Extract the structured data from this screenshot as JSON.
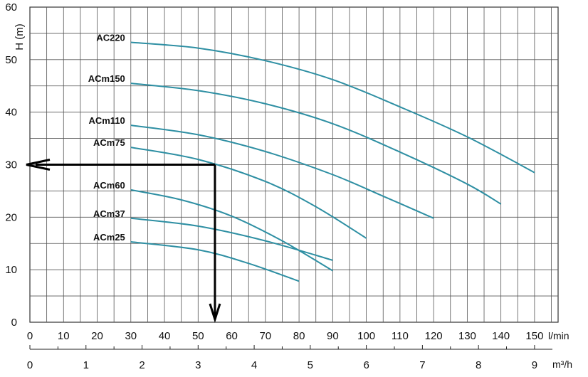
{
  "chart_data": {
    "type": "line",
    "title": "",
    "ylabel": "H (m)",
    "xlabel": "l/min",
    "xlabel_secondary": "m³/h",
    "xlim": [
      0,
      157
    ],
    "ylim": [
      0,
      60
    ],
    "grid": true,
    "x_ticks": [
      0,
      10,
      20,
      30,
      40,
      50,
      60,
      70,
      80,
      90,
      100,
      110,
      120,
      130,
      140,
      150
    ],
    "x_tick_labels": [
      "0",
      "10",
      "20",
      "30",
      "40",
      "50",
      "60",
      "70",
      "80",
      "90",
      "100",
      "110",
      "120",
      "130",
      "140",
      "150"
    ],
    "y_ticks": [
      0,
      10,
      20,
      30,
      40,
      50,
      60
    ],
    "y_tick_labels": [
      "0",
      "10",
      "20",
      "30",
      "40",
      "50",
      "60"
    ],
    "x2_ticks": [
      0,
      1,
      2,
      3,
      4,
      5,
      6,
      7,
      8,
      9
    ],
    "x2_tick_labels": [
      "0",
      "1",
      "2",
      "3",
      "4",
      "5",
      "6",
      "7",
      "8",
      "9"
    ],
    "series": [
      {
        "name": "AC220",
        "x": [
          30,
          50,
          70,
          90,
          110,
          130,
          150
        ],
        "y": [
          53.3,
          52.2,
          49.8,
          46.2,
          41.0,
          35.3,
          28.5
        ]
      },
      {
        "name": "ACm150",
        "x": [
          30,
          50,
          70,
          90,
          110,
          130,
          140
        ],
        "y": [
          45.5,
          44.1,
          41.6,
          37.8,
          32.4,
          26.3,
          22.5
        ]
      },
      {
        "name": "ACm110",
        "x": [
          30,
          50,
          70,
          90,
          105,
          120
        ],
        "y": [
          37.5,
          35.7,
          32.5,
          28.1,
          24.0,
          19.8
        ]
      },
      {
        "name": "ACm75",
        "x": [
          30,
          50,
          70,
          85,
          100
        ],
        "y": [
          33.3,
          31.0,
          26.8,
          22.0,
          16.0
        ]
      },
      {
        "name": "ACm60",
        "x": [
          30,
          45,
          60,
          75,
          90
        ],
        "y": [
          25.2,
          23.3,
          20.2,
          15.5,
          9.8
        ]
      },
      {
        "name": "ACm37",
        "x": [
          30,
          50,
          70,
          90
        ],
        "y": [
          19.8,
          18.3,
          15.5,
          11.8
        ]
      },
      {
        "name": "ACm25",
        "x": [
          30,
          50,
          65,
          80
        ],
        "y": [
          15.3,
          13.8,
          11.2,
          7.8
        ]
      }
    ],
    "annotations": [
      {
        "type": "operating-point-arrows",
        "x": 55,
        "y": 30
      }
    ]
  }
}
